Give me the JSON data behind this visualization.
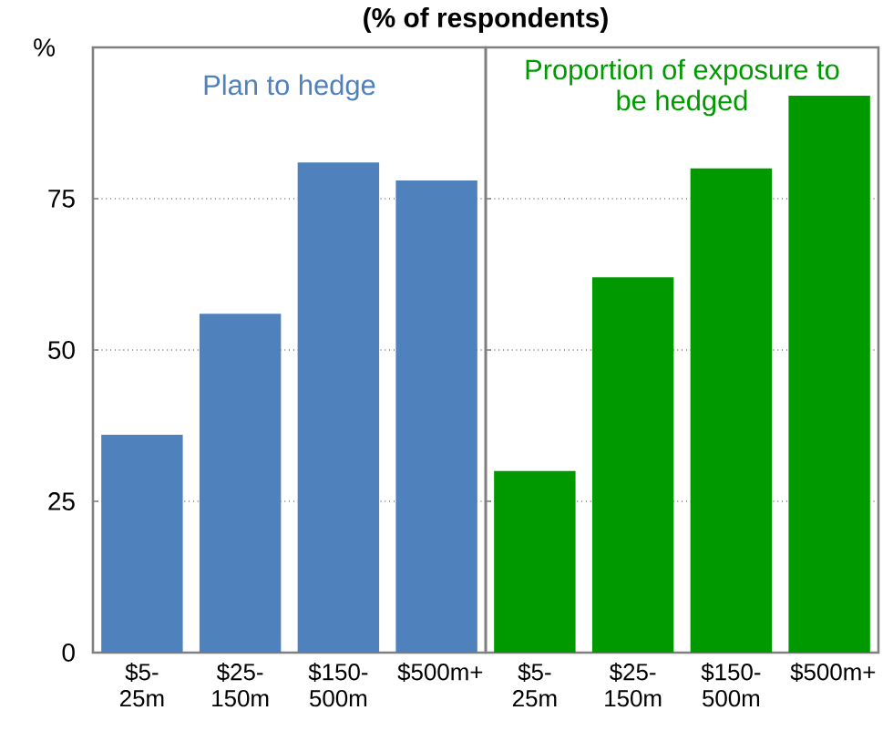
{
  "chart_data": [
    {
      "type": "bar",
      "title": "(% of respondents)",
      "ylabel": "%",
      "categories": [
        "$5-25m",
        "$25-150m",
        "$150-500m",
        "$500m+"
      ],
      "series": [
        {
          "name": "Plan to hedge",
          "color": "#4f81bd",
          "values": [
            36,
            56,
            81,
            78
          ]
        }
      ],
      "ylim": [
        0,
        100
      ],
      "yticks": [
        0,
        25,
        50,
        75
      ],
      "grid": "y"
    },
    {
      "type": "bar",
      "categories": [
        "$5-25m",
        "$25-150m",
        "$150-500m",
        "$500m+"
      ],
      "series": [
        {
          "name": "Proportion of exposure to be hedged",
          "color": "#009900",
          "values": [
            30,
            62,
            80,
            92
          ]
        }
      ],
      "ylim": [
        0,
        100
      ],
      "yticks": [
        0,
        25,
        50,
        75
      ],
      "grid": "y",
      "tick_labels": "x"
    }
  ]
}
